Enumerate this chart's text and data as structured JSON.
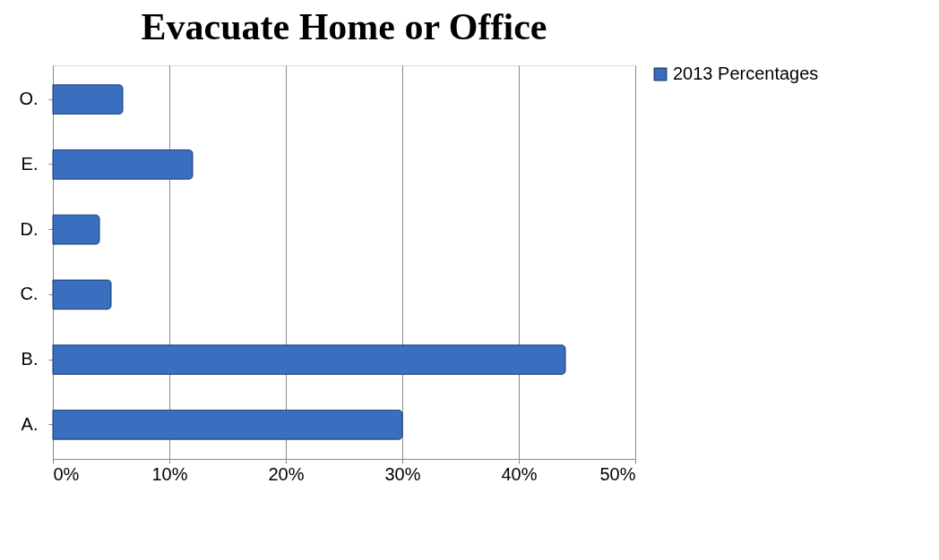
{
  "chart_data": {
    "type": "bar",
    "orientation": "horizontal",
    "title": "Evacuate Home or Office",
    "categories": [
      "O.",
      "E.",
      "D.",
      "C.",
      "B.",
      "A."
    ],
    "series": [
      {
        "name": "2013 Percentages",
        "color": "#3a6fbf",
        "values": [
          6,
          12,
          4,
          5,
          44,
          30
        ]
      }
    ],
    "xlim": [
      0,
      50
    ],
    "xticks": [
      {
        "value": 0,
        "label": "0%"
      },
      {
        "value": 10,
        "label": "10%"
      },
      {
        "value": 20,
        "label": "20%"
      },
      {
        "value": 30,
        "label": "30%"
      },
      {
        "value": 40,
        "label": "40%"
      },
      {
        "value": 50,
        "label": "50%"
      }
    ],
    "grid": "x",
    "legend": "right"
  }
}
